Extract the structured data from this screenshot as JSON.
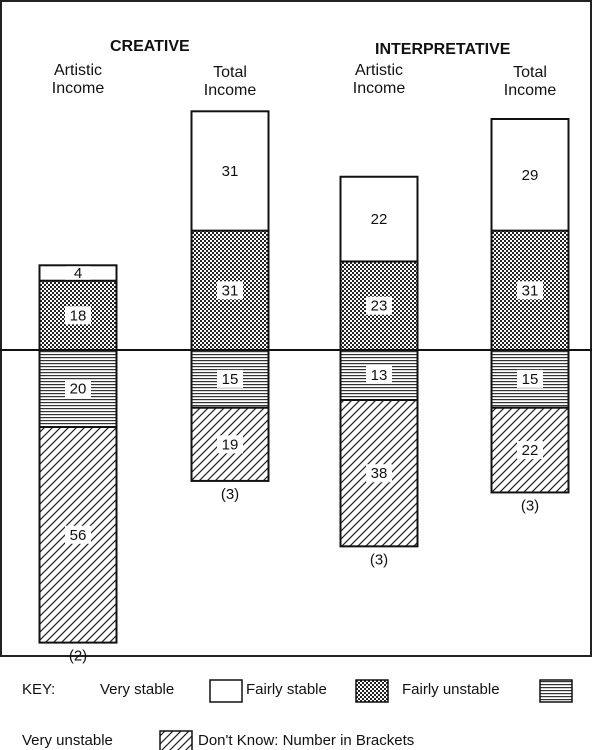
{
  "chart_data": {
    "type": "diverging_stacked_bar",
    "groups": [
      "CREATIVE",
      "INTERPRETATIVE"
    ],
    "categories": [
      "Artistic Income",
      "Total Income",
      "Artistic Income",
      "Total Income"
    ],
    "series": [
      {
        "name": "Very stable",
        "pattern": "white",
        "side": "above",
        "values": [
          4,
          31,
          22,
          29
        ]
      },
      {
        "name": "Fairly stable",
        "pattern": "dots",
        "side": "above",
        "values": [
          18,
          31,
          23,
          31
        ]
      },
      {
        "name": "Fairly unstable",
        "pattern": "lines",
        "side": "below",
        "values": [
          20,
          15,
          13,
          15
        ]
      },
      {
        "name": "Very unstable",
        "pattern": "hatch",
        "side": "below",
        "values": [
          56,
          19,
          38,
          22
        ]
      }
    ],
    "dont_know": {
      "name": "Don't Know: Number in Brackets",
      "values": [
        2,
        3,
        3,
        3
      ],
      "value_labels": [
        "(2)",
        "(3)",
        "(3)",
        "(3)"
      ]
    },
    "legend_title": "KEY:"
  }
}
